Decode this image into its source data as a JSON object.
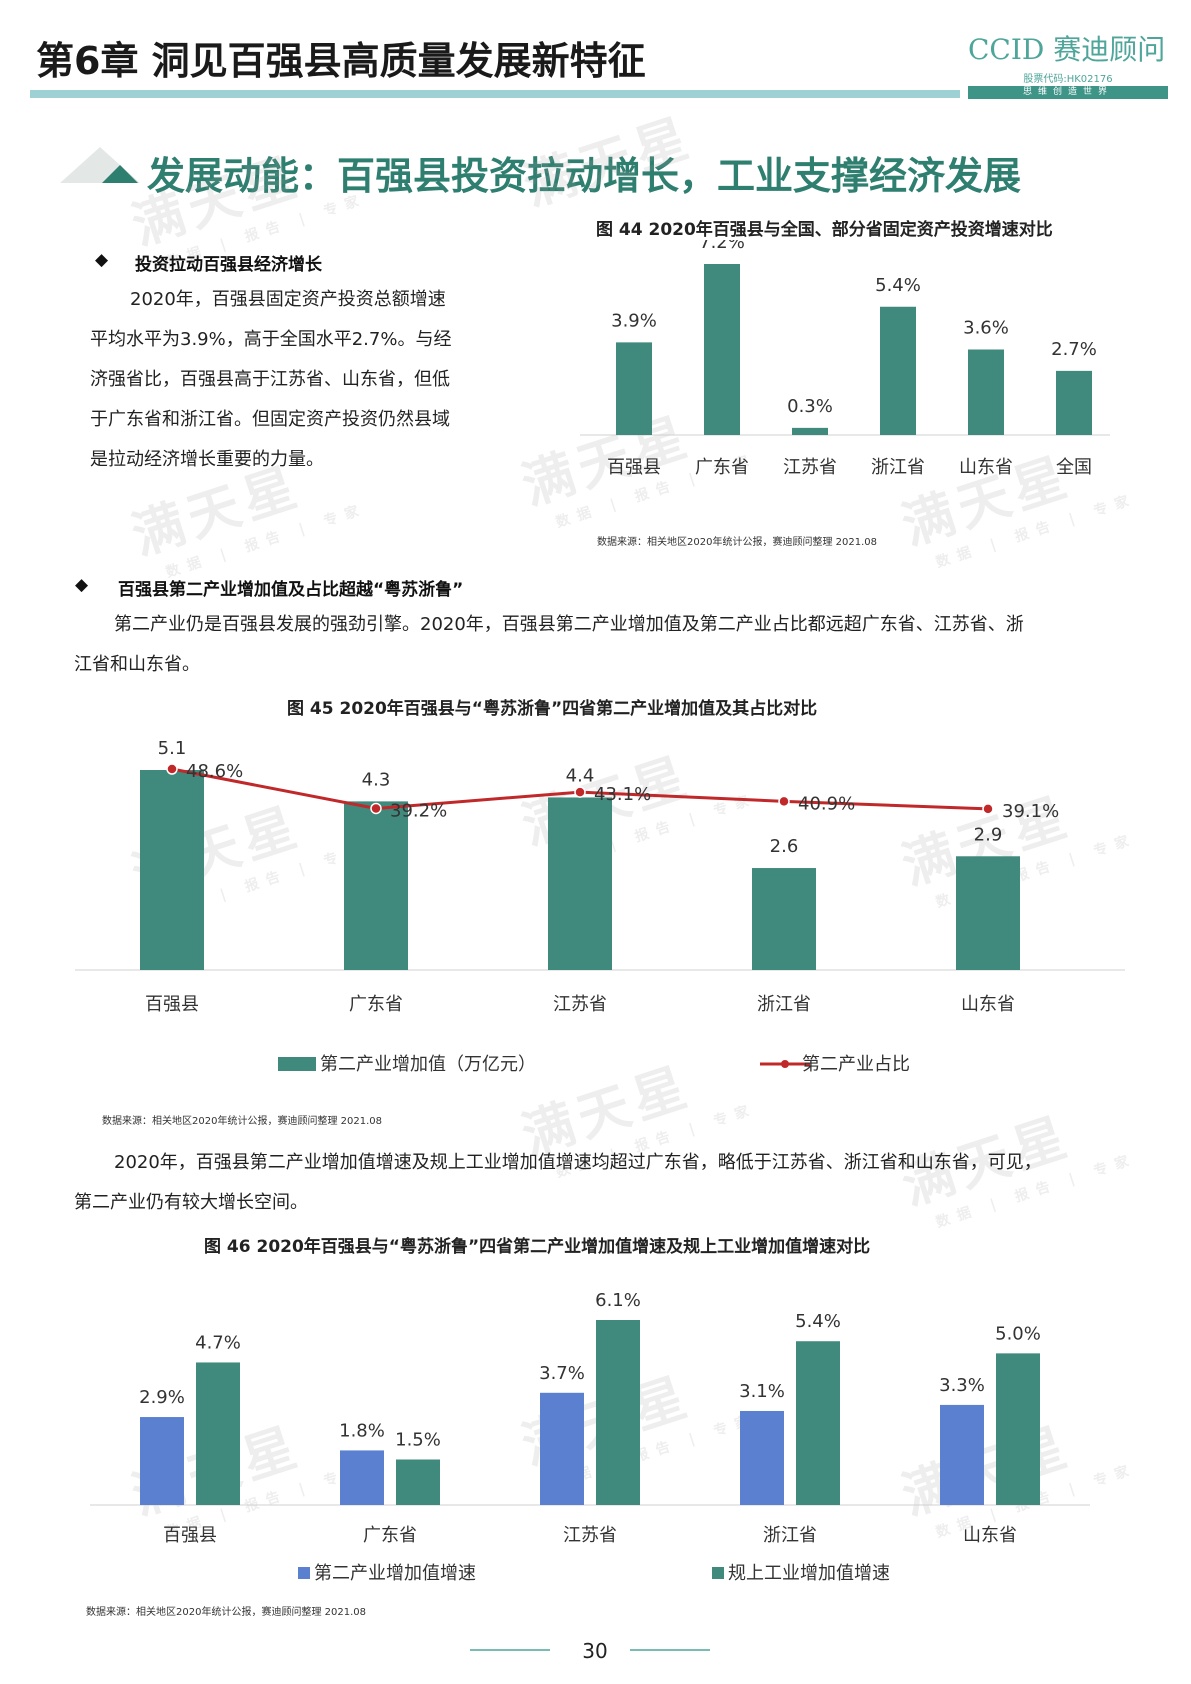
{
  "header": {
    "chapter_title": "第6章  洞见百强县高质量发展新特征",
    "logo_main": "CCID 赛迪顾问",
    "logo_code": "股票代码:HK02176",
    "logo_slogan": "思维创造世界"
  },
  "section_title": "发展动能：百强县投资拉动增长，工业支撑经济发展",
  "watermark": {
    "main": "满天星",
    "sub": "数据 | 报告 | 专家"
  },
  "block1": {
    "bullet": "◆",
    "heading": "投资拉动百强县经济增长",
    "lines": [
      "2020年，百强县固定资产投资总额增速",
      "平均水平为3.9%，高于全国水平2.7%。与经",
      "济强省比，百强县高于江苏省、山东省，但低",
      "于广东省和浙江省。但固定资产投资仍然县域",
      "是拉动经济增长重要的力量。"
    ]
  },
  "block2": {
    "bullet": "◆",
    "heading": "百强县第二产业增加值及占比超越“粤苏浙鲁”",
    "lines": [
      "第二产业仍是百强县发展的强劲引擎。2020年，百强县第二产业增加值及第二产业占比都远超广东省、江苏省、浙",
      "江省和山东省。"
    ]
  },
  "block3": {
    "lines": [
      "2020年，百强县第二产业增加值增速及规上工业增加值增速均超过广东省，略低于江苏省、浙江省和山东省，可见，",
      "第二产业仍有较大增长空间。"
    ]
  },
  "chart_data": [
    {
      "type": "bar",
      "title": "图 44  2020年百强县与全国、部分省固定资产投资增速对比",
      "categories": [
        "百强县",
        "广东省",
        "江苏省",
        "浙江省",
        "山东省",
        "全国"
      ],
      "values": [
        3.9,
        7.2,
        0.3,
        5.4,
        3.6,
        2.7
      ],
      "labels": [
        "3.9%",
        "7.2%",
        "0.3%",
        "5.4%",
        "3.6%",
        "2.7%"
      ],
      "ylim": [
        0,
        8
      ],
      "color": "#3f8a7c",
      "source": "数据来源：相关地区2020年统计公报，赛迪顾问整理  2021.08"
    },
    {
      "type": "bar",
      "title": "图 45  2020年百强县与“粤苏浙鲁”四省第二产业增加值及其占比对比",
      "categories": [
        "百强县",
        "广东省",
        "江苏省",
        "浙江省",
        "山东省"
      ],
      "series": [
        {
          "name": "第二产业增加值（万亿元）",
          "type": "bar",
          "values": [
            5.1,
            4.3,
            4.4,
            2.6,
            2.9
          ],
          "labels": [
            "5.1",
            "4.3",
            "4.4",
            "2.6",
            "2.9"
          ],
          "color": "#3f8a7c"
        },
        {
          "name": "第二产业占比",
          "type": "line",
          "values": [
            48.6,
            39.2,
            43.1,
            40.9,
            39.1
          ],
          "labels": [
            "48.6%",
            "39.2%",
            "43.1%",
            "40.9%",
            "39.1%"
          ],
          "color": "#c0282a"
        }
      ],
      "legend": "bottom",
      "source": "数据来源：相关地区2020年统计公报，赛迪顾问整理  2021.08"
    },
    {
      "type": "bar",
      "title": "图 46  2020年百强县与“粤苏浙鲁”四省第二产业增加值增速及规上工业增加值增速对比",
      "categories": [
        "百强县",
        "广东省",
        "江苏省",
        "浙江省",
        "山东省"
      ],
      "series": [
        {
          "name": "第二产业增加值增速",
          "values": [
            2.9,
            1.8,
            3.7,
            3.1,
            3.3
          ],
          "labels": [
            "2.9%",
            "1.8%",
            "3.7%",
            "3.1%",
            "3.3%"
          ],
          "color": "#5b80d0"
        },
        {
          "name": "规上工业增加值增速",
          "values": [
            4.7,
            1.5,
            6.1,
            5.4,
            5.0
          ],
          "labels": [
            "4.7%",
            "1.5%",
            "6.1%",
            "5.4%",
            "5.0%"
          ],
          "color": "#3f8a7c"
        }
      ],
      "legend": "bottom",
      "source": "数据来源：相关地区2020年统计公报，赛迪顾问整理  2021.08"
    }
  ],
  "page_number": "30"
}
